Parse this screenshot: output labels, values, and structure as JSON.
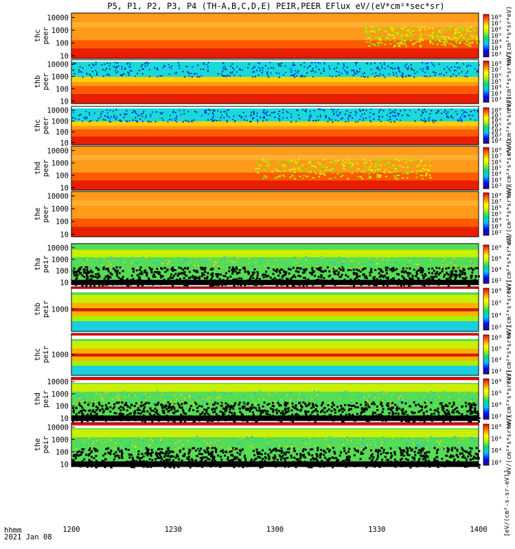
{
  "title": "P5, P1, P2, P3, P4 (TH-A,B,C,D,E) PEIR,PEER EFlux eV/(eV*cm²*sec*sr)",
  "time_axis": {
    "ticks": [
      "1200",
      "1230",
      "1300",
      "1330",
      "1400"
    ],
    "label_line1": "hhmm",
    "label_line2": "2021 Jan 08"
  },
  "colorbar_units": "[eV/(cm²-s-sr-eV)]",
  "colorbar_units_short": "eV/(cm²*s*sr*eV)",
  "chart_data": {
    "type": "heatmap",
    "x_range": [
      "12:00",
      "14:00"
    ],
    "y_scale": "log",
    "panels": [
      {
        "name": "thc peer",
        "line1": "thc",
        "line2": "peer",
        "y_ticks": [
          "10",
          "100",
          "1000",
          "10000"
        ],
        "cbar_ticks": [
          "10²",
          "10³",
          "10⁴",
          "10⁵",
          "10⁶",
          "10⁷",
          "10⁸"
        ]
      },
      {
        "name": "thb peer",
        "line1": "thb",
        "line2": "peer",
        "y_ticks": [
          "10",
          "100",
          "1000",
          "10000"
        ],
        "cbar_ticks": [
          "10²",
          "10³",
          "10⁴",
          "10⁵",
          "10⁶",
          "10⁷",
          "10⁸"
        ]
      },
      {
        "name": "thc peer",
        "line1": "thc",
        "line2": "peer",
        "y_ticks": [
          "10",
          "100",
          "1000",
          "10000"
        ],
        "cbar_ticks": [
          "10²",
          "10³",
          "10⁴",
          "10⁵",
          "10⁶",
          "10⁷",
          "10⁸"
        ]
      },
      {
        "name": "thd peer",
        "line1": "thd",
        "line2": "peer",
        "y_ticks": [
          "10",
          "100",
          "1000",
          "10000"
        ],
        "cbar_ticks": [
          "10²",
          "10³",
          "10⁴",
          "10⁵",
          "10⁶",
          "10⁷",
          "10⁸"
        ]
      },
      {
        "name": "the peer",
        "line1": "the",
        "line2": "peer",
        "y_ticks": [
          "10",
          "100",
          "1000",
          "10000"
        ],
        "cbar_ticks": [
          "10²",
          "10³",
          "10⁴",
          "10⁵",
          "10⁶",
          "10⁷",
          "10⁸"
        ]
      },
      {
        "name": "tha peir",
        "line1": "tha",
        "line2": "peir",
        "y_ticks": [
          "10",
          "100",
          "1000",
          "10000"
        ],
        "cbar_ticks": [
          "10²",
          "10⁴",
          "10⁶",
          "10⁸"
        ]
      },
      {
        "name": "thb peir",
        "line1": "thb",
        "line2": "peir",
        "y_ticks": [
          "1000"
        ],
        "cbar_ticks": [
          "10²",
          "10⁴",
          "10⁶",
          "10⁸"
        ]
      },
      {
        "name": "thc peir",
        "line1": "thc",
        "line2": "peir",
        "y_ticks": [
          "1000"
        ],
        "cbar_ticks": [
          "10²",
          "10⁴",
          "10⁶",
          "10⁸"
        ]
      },
      {
        "name": "thd peir",
        "line1": "thd",
        "line2": "peir",
        "y_ticks": [
          "10",
          "100",
          "1000",
          "10000"
        ],
        "cbar_ticks": [
          "10²",
          "10⁴",
          "10⁶",
          "10⁸"
        ]
      },
      {
        "name": "the peir",
        "line1": "the",
        "line2": "peir",
        "y_ticks": [
          "10",
          "100",
          "1000",
          "10000"
        ],
        "cbar_ticks": [
          "10²",
          "10⁴",
          "10⁶",
          "10⁸"
        ]
      }
    ]
  }
}
